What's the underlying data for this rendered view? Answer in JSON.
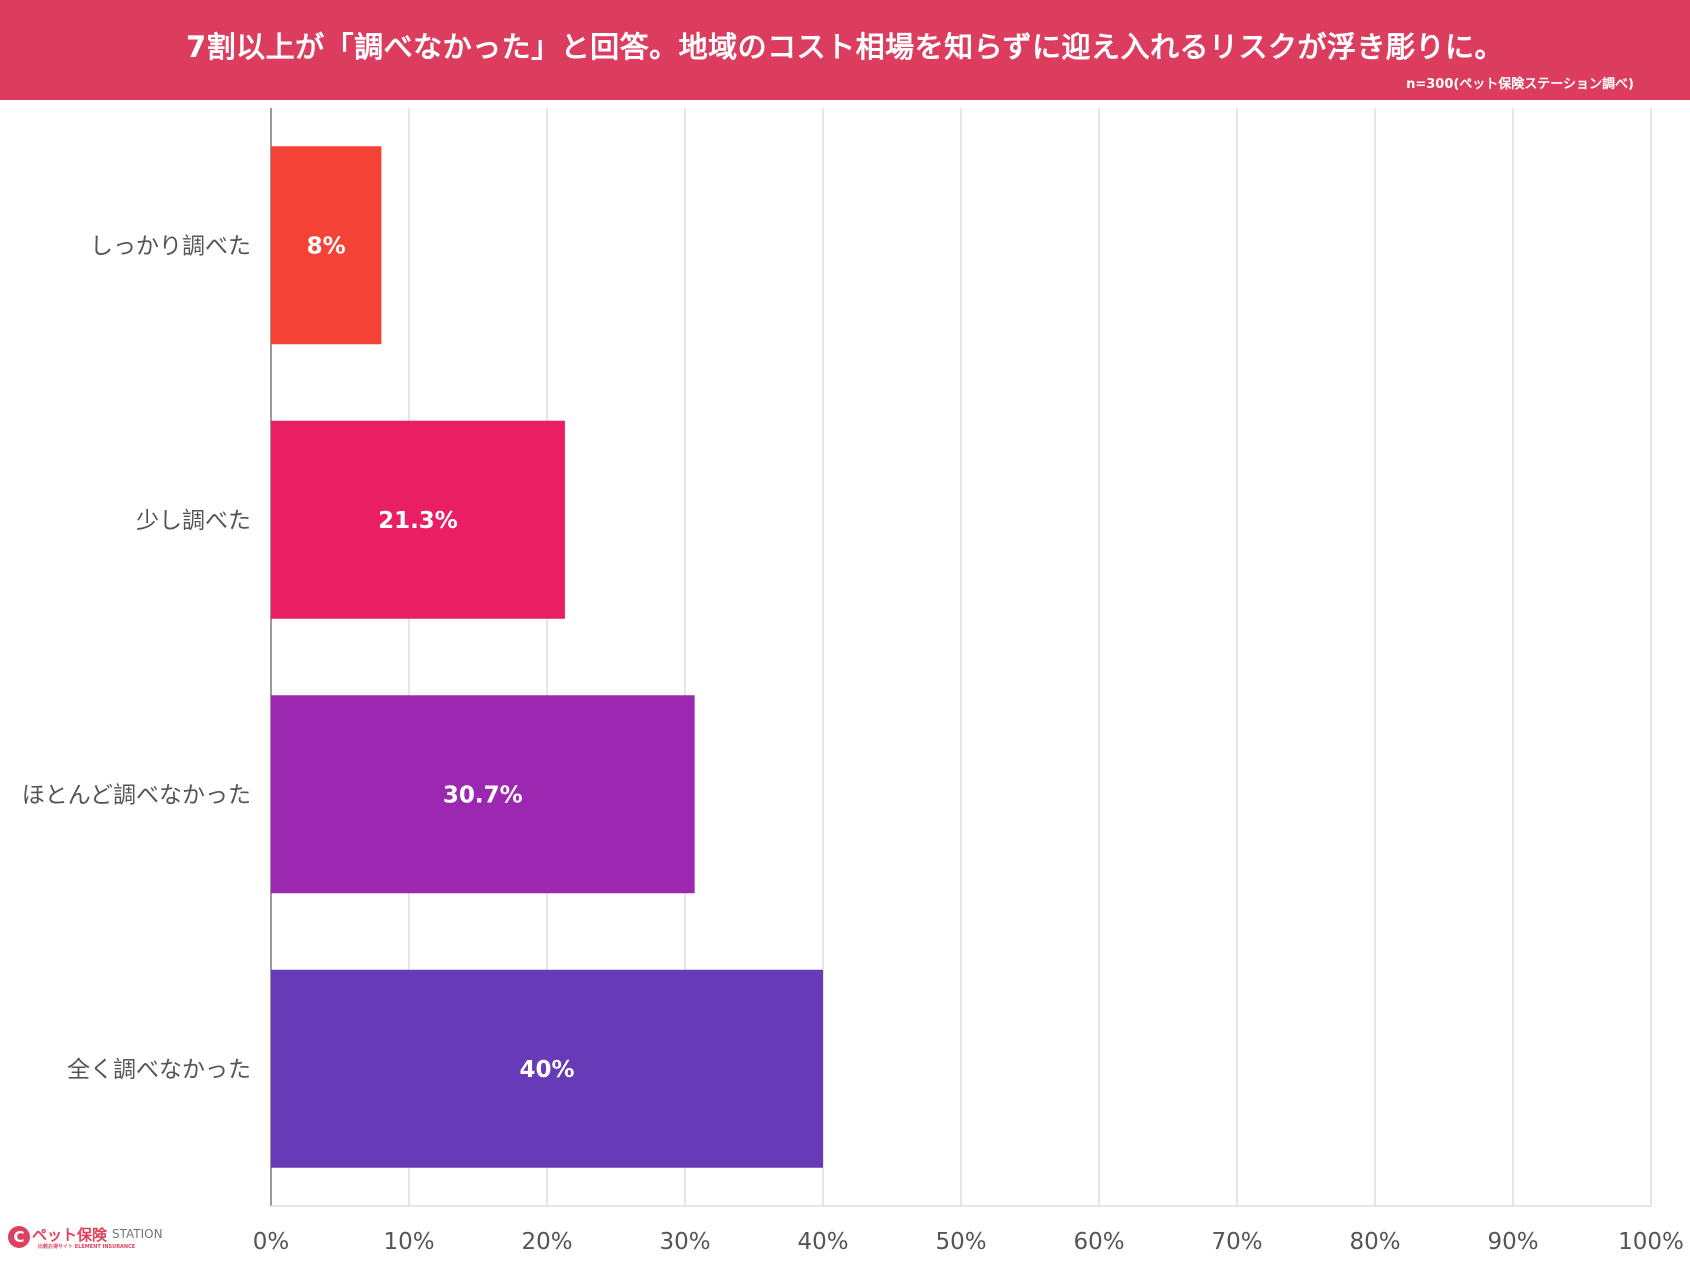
{
  "header": {
    "title": "7割以上が「調べなかった」と回答。地域のコスト相場を知らずに迎え入れるリスクが浮き彫りに。",
    "source": "n=300(ペット保険ステーション調べ)",
    "background_color": "#dc3d5e"
  },
  "chart_data": {
    "type": "bar",
    "orientation": "horizontal",
    "categories": [
      "しっかり調べた",
      "少し調べた",
      "ほとんど調べなかった",
      "全く調べなかった"
    ],
    "values": [
      8,
      21.3,
      30.7,
      40
    ],
    "data_labels": [
      "8%",
      "21.3%",
      "30.7%",
      "40%"
    ],
    "colors": [
      "#f44336",
      "#e91e63",
      "#9c27b0",
      "#673ab7"
    ],
    "xlim": [
      0,
      100
    ],
    "x_ticks": [
      "0%",
      "10%",
      "20%",
      "30%",
      "40%",
      "50%",
      "60%",
      "70%",
      "80%",
      "90%",
      "100%"
    ],
    "grid": true,
    "title": "",
    "xlabel": "",
    "ylabel": ""
  },
  "logo": {
    "mark": "C",
    "main": "ペット保険",
    "station": "STATION",
    "sub": "比較お得サイト ELEMENT INSURANCE"
  }
}
